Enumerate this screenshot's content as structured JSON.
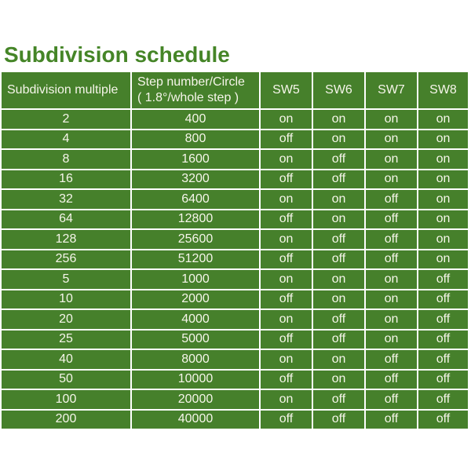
{
  "title": "Subdivision schedule",
  "colors": {
    "cell_green": "#46802B",
    "title_green": "#458527",
    "cell_text": "#F6F5EA",
    "page_background": "#FFFFFF"
  },
  "chart_data": {
    "type": "table",
    "title": "Subdivision schedule",
    "columns": [
      "Subdivision multiple",
      "Step number/Circle ( 1.8°/whole step )",
      "SW5",
      "SW6",
      "SW7",
      "SW8"
    ],
    "header_display": {
      "col1": "Subdivision multiple",
      "col2_line1": "Step number/Circle",
      "col2_line2": "( 1.8°/whole step )",
      "sw": [
        "SW5",
        "SW6",
        "SW7",
        "SW8"
      ]
    },
    "rows": [
      [
        "2",
        "400",
        "on",
        "on",
        "on",
        "on"
      ],
      [
        "4",
        "800",
        "off",
        "on",
        "on",
        "on"
      ],
      [
        "8",
        "1600",
        "on",
        "off",
        "on",
        "on"
      ],
      [
        "16",
        "3200",
        "off",
        "off",
        "on",
        "on"
      ],
      [
        "32",
        "6400",
        "on",
        "on",
        "off",
        "on"
      ],
      [
        "64",
        "12800",
        "off",
        "on",
        "off",
        "on"
      ],
      [
        "128",
        "25600",
        "on",
        "off",
        "off",
        "on"
      ],
      [
        "256",
        "51200",
        "off",
        "off",
        "off",
        "on"
      ],
      [
        "5",
        "1000",
        "on",
        "on",
        "on",
        "off"
      ],
      [
        "10",
        "2000",
        "off",
        "on",
        "on",
        "off"
      ],
      [
        "20",
        "4000",
        "on",
        "off",
        "on",
        "off"
      ],
      [
        "25",
        "5000",
        "off",
        "off",
        "on",
        "off"
      ],
      [
        "40",
        "8000",
        "on",
        "on",
        "off",
        "off"
      ],
      [
        "50",
        "10000",
        "off",
        "on",
        "off",
        "off"
      ],
      [
        "100",
        "20000",
        "on",
        "off",
        "off",
        "off"
      ],
      [
        "200",
        "40000",
        "off",
        "off",
        "off",
        "off"
      ]
    ]
  }
}
